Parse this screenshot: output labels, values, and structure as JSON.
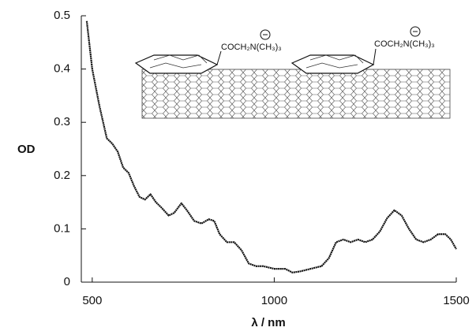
{
  "chart_data": {
    "type": "line",
    "x_label": "λ / nm",
    "y_label": "OD",
    "annotations": [
      "COCH₂N(CH₃)₃",
      "COCH₂N(CH₃)₃"
    ],
    "x": [
      485,
      500,
      520,
      540,
      555,
      570,
      585,
      600,
      615,
      630,
      645,
      660,
      675,
      690,
      710,
      725,
      745,
      760,
      780,
      800,
      820,
      835,
      850,
      870,
      890,
      910,
      930,
      950,
      970,
      1000,
      1030,
      1050,
      1070,
      1100,
      1130,
      1150,
      1170,
      1190,
      1210,
      1230,
      1250,
      1270,
      1290,
      1310,
      1330,
      1350,
      1370,
      1390,
      1410,
      1430,
      1450,
      1470,
      1485,
      1500
    ],
    "values": [
      0.49,
      0.4,
      0.33,
      0.27,
      0.26,
      0.245,
      0.215,
      0.205,
      0.18,
      0.16,
      0.155,
      0.165,
      0.15,
      0.14,
      0.125,
      0.13,
      0.148,
      0.135,
      0.115,
      0.11,
      0.118,
      0.115,
      0.09,
      0.075,
      0.075,
      0.06,
      0.035,
      0.03,
      0.03,
      0.025,
      0.025,
      0.018,
      0.02,
      0.025,
      0.03,
      0.045,
      0.075,
      0.08,
      0.075,
      0.08,
      0.075,
      0.08,
      0.095,
      0.12,
      0.135,
      0.125,
      0.1,
      0.08,
      0.075,
      0.08,
      0.09,
      0.09,
      0.08,
      0.062
    ],
    "color": "#111111",
    "xlim": [
      470,
      1500
    ],
    "ylim": [
      0,
      0.5
    ],
    "xticks": [
      500,
      1000,
      1500
    ],
    "yticks": [
      0,
      0.1,
      0.2,
      0.3,
      0.4,
      0.5
    ]
  }
}
